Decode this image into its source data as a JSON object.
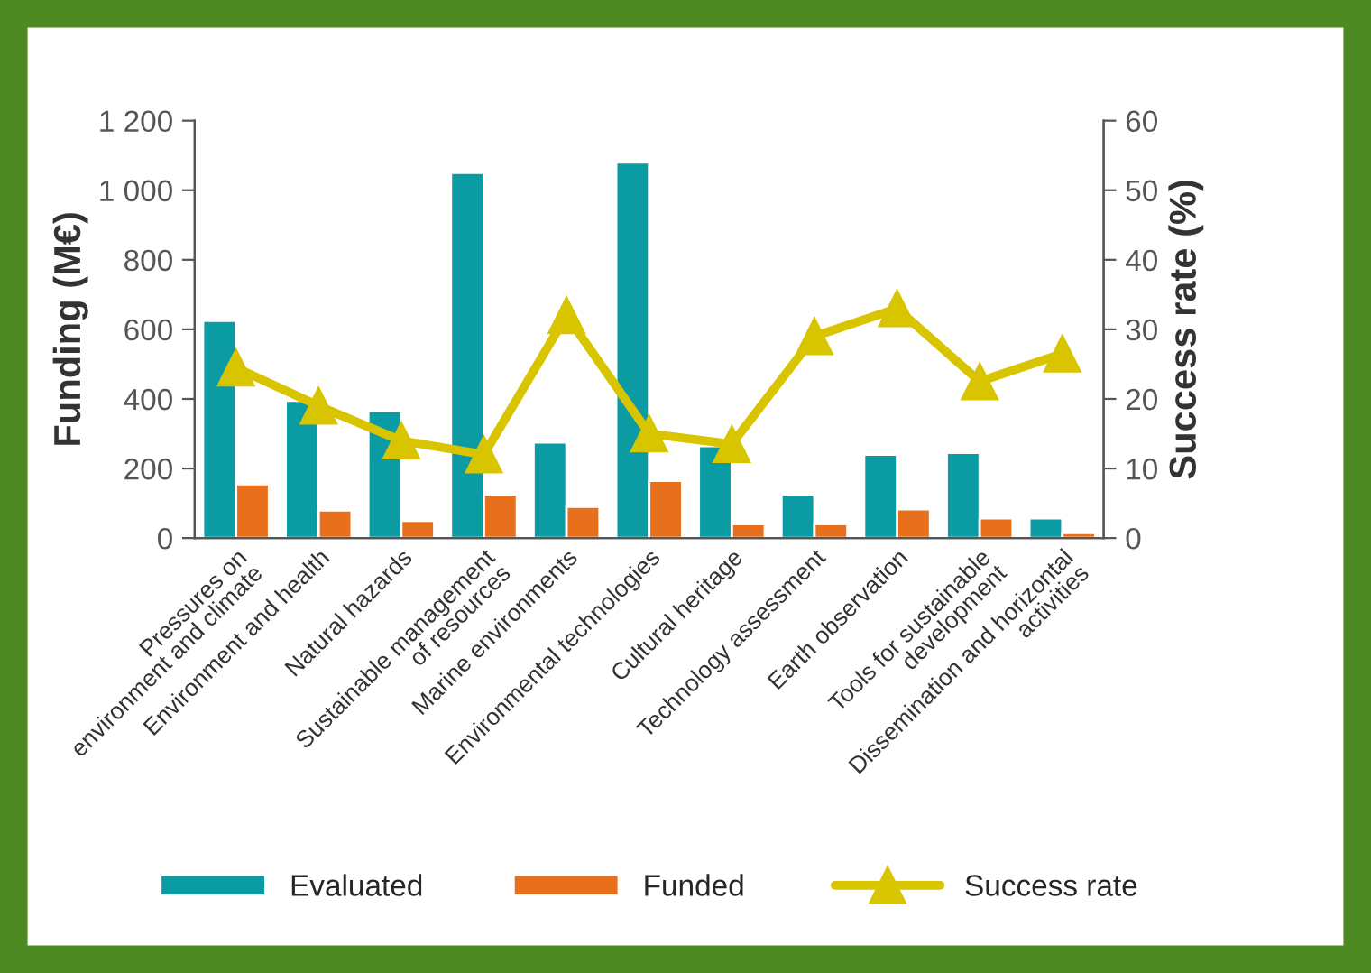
{
  "chart_data": {
    "type": "bar",
    "categories": [
      "Pressures on\nenvironment and climate",
      "Environment and health",
      "Natural hazards",
      "Sustainable management\nof resources",
      "Marine environments",
      "Environmental technologies",
      "Cultural heritage",
      "Technology assessment",
      "Earth observation",
      "Tools for sustainable\ndevelopment",
      "Dissemination and horizontal\nactivities"
    ],
    "series": [
      {
        "name": "Evaluated",
        "color": "#0a9ba3",
        "values": [
          625,
          395,
          365,
          1050,
          275,
          1080,
          265,
          125,
          240,
          245,
          57
        ]
      },
      {
        "name": "Funded",
        "color": "#e8701c",
        "values": [
          155,
          80,
          50,
          125,
          90,
          165,
          40,
          40,
          83,
          57,
          15
        ]
      },
      {
        "name": "Success rate",
        "type": "line",
        "axis": "y2",
        "color": "#d9c400",
        "marker": "triangle",
        "values": [
          24.5,
          19,
          14,
          12,
          32,
          15,
          13.5,
          29,
          33,
          22.5,
          26.5
        ]
      }
    ],
    "ylabel": "Funding (M€)",
    "y2label": "Success rate (%)",
    "ylim": [
      0,
      1200
    ],
    "yticks": [
      0,
      200,
      400,
      600,
      800,
      {
        "value": 1000,
        "label": "1 000"
      },
      {
        "value": 1200,
        "label": "1 200"
      }
    ],
    "y2lim": [
      0,
      60
    ],
    "y2ticks": [
      0,
      10,
      20,
      30,
      40,
      50,
      60
    ],
    "grid": false,
    "legend": "bottom"
  }
}
